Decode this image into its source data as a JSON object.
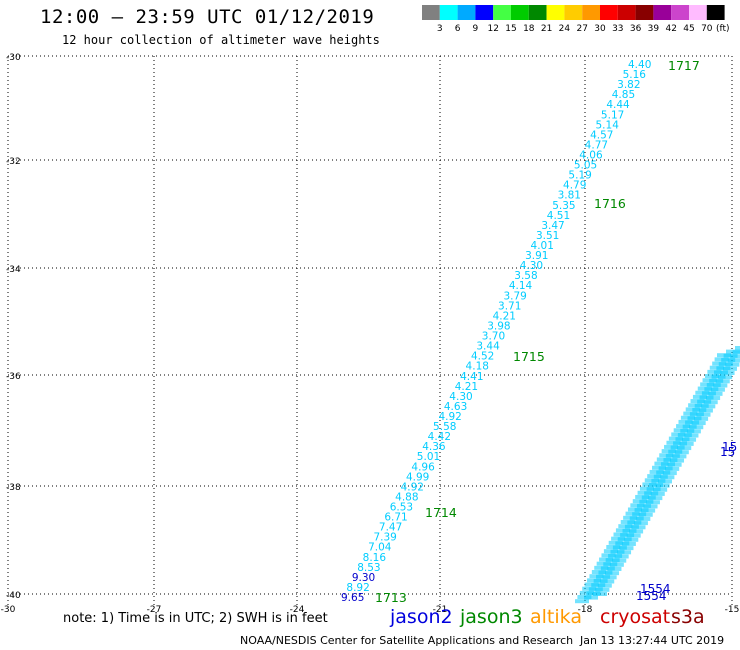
{
  "header": {
    "title": "12:00 – 23:59 UTC 01/12/2019",
    "subtitle": "12 hour collection of altimeter wave heights"
  },
  "legend": {
    "unit": "(ft)",
    "bins": [
      {
        "label": "3",
        "color": "#808080"
      },
      {
        "label": "6",
        "color": "#00ffff"
      },
      {
        "label": "9",
        "color": "#00aaff"
      },
      {
        "label": "12",
        "color": "#0000ff"
      },
      {
        "label": "15",
        "color": "#44ff44"
      },
      {
        "label": "18",
        "color": "#00cc00"
      },
      {
        "label": "21",
        "color": "#008800"
      },
      {
        "label": "24",
        "color": "#ffff00"
      },
      {
        "label": "27",
        "color": "#ffcc00"
      },
      {
        "label": "30",
        "color": "#ff9900"
      },
      {
        "label": "33",
        "color": "#ff0000"
      },
      {
        "label": "36",
        "color": "#cc0000"
      },
      {
        "label": "39",
        "color": "#880000"
      },
      {
        "label": "42",
        "color": "#990099"
      },
      {
        "label": "45",
        "color": "#cc44cc"
      },
      {
        "label": "70",
        "color": "#ffbbff"
      },
      {
        "label": "",
        "color": "#000000"
      }
    ]
  },
  "map": {
    "lat_labels": [
      "-30",
      "-32",
      "-34",
      "-36",
      "-38",
      "-40"
    ],
    "lon_labels": [
      "-30",
      "-27",
      "-24",
      "-21",
      "-18",
      "-15"
    ],
    "track_color": "#00ccff",
    "dark_color": "#0000cc",
    "time_color": "#008800",
    "track_1": {
      "values": [
        "4.40",
        "5.16",
        "3.82",
        "4.85",
        "4.44",
        "5.17",
        "5.14",
        "4.57",
        "4.77",
        "4.06",
        "5.05",
        "5.19",
        "4.79",
        "3.81",
        "5.35",
        "4.51",
        "3.47",
        "3.51",
        "4.01",
        "3.91",
        "4.30",
        "3.58",
        "4.14",
        "3.79",
        "3.71",
        "4.21",
        "3.98",
        "3.70",
        "3.44",
        "4.52",
        "4.18",
        "4.41",
        "4.21",
        "4.30",
        "4.63",
        "4.92",
        "5.58",
        "4.42",
        "4.36",
        "5.01",
        "4.96",
        "4.99",
        "4.92",
        "4.88",
        "6.53",
        "6.71",
        "7.47",
        "7.39",
        "7.04",
        "8.16",
        "8.53",
        "9.30",
        "8.92",
        "9.65"
      ],
      "times": [
        "1717",
        "1716",
        "1715",
        "1714",
        "1713"
      ]
    },
    "track_2": {
      "times": [
        "1554",
        "1554",
        "15",
        "15"
      ]
    }
  },
  "footer": {
    "note": "note: 1) Time is in UTC; 2) SWH is in feet",
    "satellites": [
      {
        "name": "jason2",
        "color": "#0000dd"
      },
      {
        "name": "jason3",
        "color": "#008800"
      },
      {
        "name": "altika",
        "color": "#ff9900"
      },
      {
        "name": "cryosat",
        "color": "#cc0000"
      },
      {
        "name": "s3a",
        "color": "#880000"
      }
    ],
    "credit": "NOAA/NESDIS Center for Satellite Applications and Research",
    "timestamp": "Jan 13 13:27:44 UTC 2019"
  }
}
